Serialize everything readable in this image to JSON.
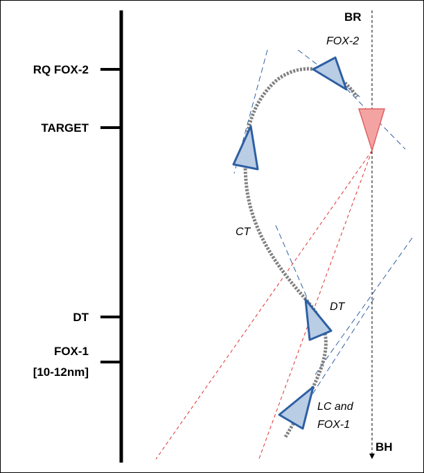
{
  "timeline": {
    "labels": [
      "RQ FOX-2",
      "TARGET",
      "DT",
      "FOX-1",
      "[10-12nm]"
    ]
  },
  "axis": {
    "top": "BR",
    "bottom": "BH"
  },
  "path_labels": {
    "fox2": "FOX-2",
    "ct": "CT",
    "dt": "DT",
    "lc_line1": "LC and",
    "lc_line2": "FOX-1"
  }
}
